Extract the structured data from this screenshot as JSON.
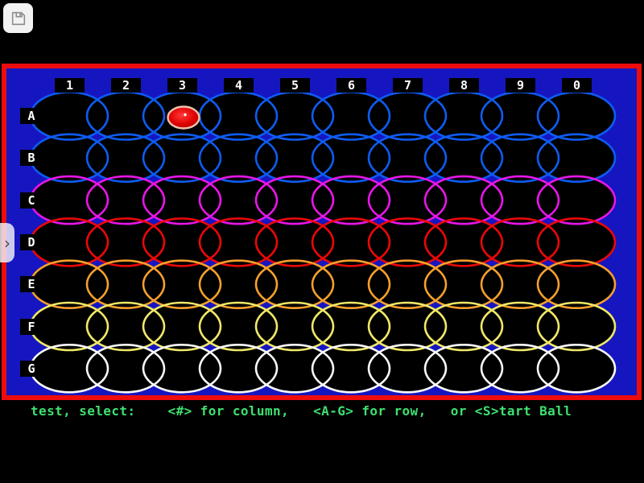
{
  "chrome": {
    "save_button": {
      "icon": "floppy-disk-icon"
    },
    "drawer_handle": {
      "icon": "chevron-right-icon",
      "glyph": "›"
    }
  },
  "game": {
    "column_headers": [
      "1",
      "2",
      "3",
      "4",
      "5",
      "6",
      "7",
      "8",
      "9",
      "0"
    ],
    "rows": [
      {
        "label": "A",
        "outline_color": "#0e5cf2"
      },
      {
        "label": "B",
        "outline_color": "#0e5cf2"
      },
      {
        "label": "C",
        "outline_color": "#e816e8"
      },
      {
        "label": "D",
        "outline_color": "#ea0808"
      },
      {
        "label": "E",
        "outline_color": "#f9a02c"
      },
      {
        "label": "F",
        "outline_color": "#f0e868"
      },
      {
        "label": "G",
        "outline_color": "#fafafa"
      }
    ],
    "ball": {
      "row": "A",
      "column": "3",
      "fill_center": "#ff2a2a",
      "fill_edge": "#a00000",
      "outline": "#eec2ae",
      "dot_color": "#ffffff"
    },
    "colors": {
      "field_background": "#1616c0",
      "field_border": "#ee0c0c",
      "cell_fill": "#000000",
      "label_background": "#000000",
      "label_text": "#ffffff",
      "status_text": "#3fe070"
    },
    "status_text": "test, select:    <#> for column,   <A-G> for row,   or <S>tart Ball"
  }
}
